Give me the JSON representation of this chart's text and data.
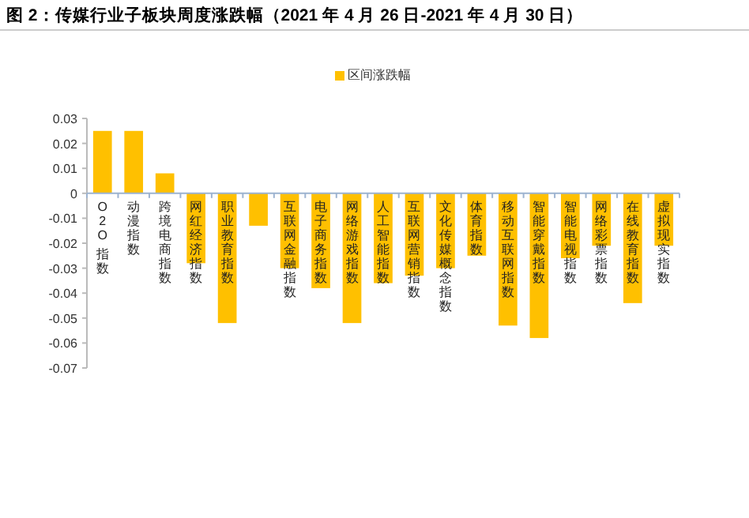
{
  "chart_data": {
    "type": "bar",
    "title": "图 2：传媒行业子板块周度涨跌幅（2021 年 4 月 26 日-2021 年 4 月 30 日）",
    "categories": [
      "O2O 指数",
      "动漫指数",
      "跨境电商指数",
      "网红经济指数",
      "职业教育指数",
      null,
      "互联网金融指数",
      "电子商务指数",
      "网络游戏指数",
      "人工智能指数",
      "互联网营销指数",
      "文化传媒概念指数",
      "体育指数",
      "移动互联网指数",
      "智能穿戴指数",
      "智能电视指数",
      "网络彩票指数",
      "在线教育指数",
      "虚拟现实指数"
    ],
    "series": [
      {
        "name": "区间涨跌幅",
        "color": "#ffc000",
        "values": [
          0.025,
          0.025,
          0.008,
          -0.028,
          -0.052,
          -0.013,
          -0.03,
          -0.038,
          -0.052,
          -0.036,
          -0.033,
          -0.03,
          -0.025,
          -0.053,
          -0.058,
          -0.026,
          -0.021,
          -0.044,
          -0.021
        ]
      }
    ],
    "ylim": [
      -0.07,
      0.03
    ],
    "yticks": [
      -0.07,
      -0.06,
      -0.05,
      -0.04,
      -0.03,
      -0.02,
      -0.01,
      0,
      0.01,
      0.02,
      0.03
    ],
    "legend": "top",
    "grid": false
  }
}
